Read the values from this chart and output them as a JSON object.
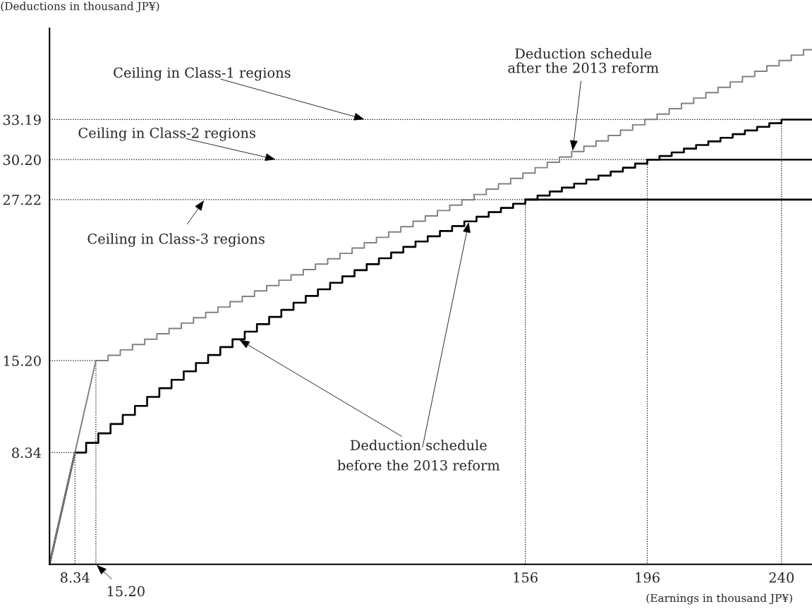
{
  "chart_data": {
    "type": "step",
    "xlabel": "(Earnings in thousand JP¥)",
    "ylabel": "(Deductions in thousand JP¥)",
    "xlim": [
      0,
      250
    ],
    "ylim": [
      0,
      40
    ],
    "xticks": [
      {
        "value": 8.34,
        "label": "8.34"
      },
      156,
      196,
      240
    ],
    "yticks": [
      8.34,
      {
        "value": 15.2,
        "label": "15.20"
      },
      27.22,
      {
        "value": 30.2,
        "label": "30.20"
      },
      33.19
    ],
    "grid": false,
    "legend": false,
    "marker": "none",
    "series": [
      {
        "type": "line",
        "line_style": "dotted",
        "color": "#000000",
        "x": [
          0,
          240,
          240
        ],
        "values": [
          33.19,
          33.19,
          0
        ]
      },
      {
        "type": "line",
        "line_style": "dotted",
        "color": "#000000",
        "x": [
          0,
          196,
          196
        ],
        "values": [
          30.2,
          30.2,
          0
        ]
      },
      {
        "type": "line",
        "line_style": "dotted",
        "color": "#000000",
        "x": [
          0,
          156,
          156
        ],
        "values": [
          27.22,
          27.22,
          0
        ]
      },
      {
        "type": "line",
        "line_style": "dotted",
        "color": "#000000",
        "x": [
          0,
          15.2,
          15.2
        ],
        "values": [
          15.2,
          15.2,
          0
        ]
      },
      {
        "type": "line",
        "line_style": "dotted",
        "color": "#000000",
        "x": [
          0,
          8.34,
          8.34
        ],
        "values": [
          8.34,
          8.34,
          0
        ]
      },
      {
        "type": "line",
        "line_style": "solid",
        "color": "#000000",
        "x": [
          0,
          8.34
        ],
        "values": [
          0,
          8.34
        ]
      },
      {
        "type": "step",
        "line_style": "solid",
        "color": "#000000",
        "x": [
          8.34,
          12,
          16,
          20,
          24,
          28,
          32,
          36,
          40,
          44,
          48,
          52,
          56,
          60,
          64,
          68,
          72,
          76,
          80,
          84,
          88,
          92,
          96,
          100,
          104,
          108,
          112,
          116,
          120,
          124,
          128,
          132,
          136,
          140,
          144,
          148,
          152,
          156,
          160,
          164,
          168,
          172,
          176,
          180,
          184,
          188,
          192,
          196,
          200,
          204,
          208,
          212,
          216,
          220,
          224,
          228,
          232,
          236,
          240,
          250
        ],
        "values": [
          8.34,
          9.06,
          9.77,
          10.47,
          11.15,
          11.82,
          12.49,
          13.14,
          13.77,
          14.4,
          15.02,
          15.62,
          16.21,
          16.79,
          17.36,
          17.92,
          18.46,
          18.99,
          19.52,
          20.03,
          20.52,
          21.01,
          21.49,
          21.95,
          22.4,
          22.84,
          23.27,
          23.69,
          24.09,
          24.48,
          24.87,
          25.24,
          25.59,
          25.94,
          26.28,
          26.6,
          26.91,
          27.22,
          27.52,
          27.82,
          28.11,
          28.41,
          28.71,
          29.01,
          29.31,
          29.6,
          29.9,
          30.2,
          30.47,
          30.74,
          31.02,
          31.29,
          31.56,
          31.83,
          32.1,
          32.38,
          32.65,
          32.92,
          33.19,
          33.19
        ]
      },
      {
        "type": "line",
        "line_style": "solid",
        "color": "#000000",
        "x": [
          156,
          250
        ],
        "values": [
          27.22,
          27.22
        ]
      },
      {
        "type": "line",
        "line_style": "solid",
        "color": "#000000",
        "x": [
          196,
          250
        ],
        "values": [
          30.2,
          30.2
        ]
      },
      {
        "type": "line",
        "line_style": "solid",
        "color": "#808080",
        "x": [
          0,
          15.2
        ],
        "values": [
          0,
          15.2
        ]
      },
      {
        "line_style": "solid",
        "color": "#808080",
        "x": [
          15.2,
          19.2,
          23.2,
          27.2,
          31.2,
          35.2,
          39.2,
          43.2,
          47.2,
          51.2,
          55.2,
          59.2,
          63.2,
          67.2,
          71.2,
          75.2,
          79.2,
          83.2,
          87.2,
          91.2,
          95.2,
          99.2,
          103.2,
          107.2,
          111.2,
          115.2,
          119.2,
          123.2,
          127.2,
          131.2,
          135.2,
          139.2,
          143.2,
          147.2,
          151.2,
          155.2,
          159.2,
          163.2,
          167.2,
          171.2,
          175.2,
          179.2,
          183.2,
          187.2,
          191.2,
          195.2,
          199.2,
          203.2,
          207.2,
          211.2,
          215.2,
          219.2,
          223.2,
          227.2,
          231.2,
          235.2,
          239.2,
          243.2,
          247.2,
          250
        ],
        "values": [
          15.2,
          15.6,
          16.0,
          16.4,
          16.8,
          17.2,
          17.6,
          18.0,
          18.4,
          18.8,
          19.2,
          19.6,
          20.0,
          20.4,
          20.8,
          21.2,
          21.6,
          22.0,
          22.4,
          22.8,
          23.2,
          23.6,
          24.0,
          24.4,
          24.8,
          25.2,
          25.6,
          26.0,
          26.4,
          26.8,
          27.2,
          27.6,
          28.0,
          28.4,
          28.8,
          29.2,
          29.6,
          30.0,
          30.4,
          30.8,
          31.2,
          31.6,
          32.0,
          32.4,
          32.8,
          33.2,
          33.6,
          34.0,
          34.4,
          34.8,
          35.2,
          35.6,
          36.0,
          36.4,
          36.8,
          37.2,
          37.6,
          38.0,
          38.4,
          38.4
        ]
      }
    ],
    "annotations": [
      {
        "text": "Ceiling in Class-1 regions",
        "x": 103.5,
        "y": 33.19
      },
      {
        "text": "Ceiling in Class-2 regions",
        "x": 74.4,
        "y": 30.2
      },
      {
        "text": "Ceiling in Class-3 regions",
        "x": 50.8,
        "y": 27.22
      },
      {
        "text": "Deduction schedule\nafter the 2013 reform",
        "x": 171.5,
        "y": 30.8
      },
      {
        "text": "Deduction schedule",
        "x": 62,
        "y": 16.79
      },
      {
        "text": "before the 2013 reform",
        "x": 137.5,
        "y": 25.59
      },
      {
        "text": "15.20",
        "x": 15.2,
        "y": 0
      }
    ]
  }
}
